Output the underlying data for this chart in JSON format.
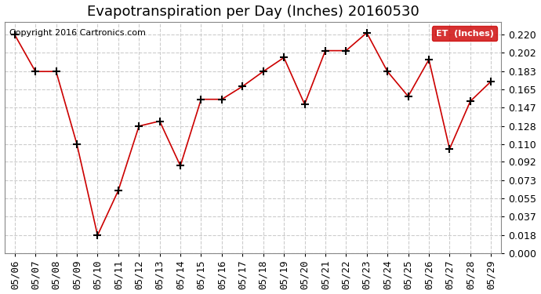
{
  "title": "Evapotranspiration per Day (Inches) 20160530",
  "copyright": "Copyright 2016 Cartronics.com",
  "legend_label": "ET  (Inches)",
  "dates": [
    "05/06",
    "05/07",
    "05/08",
    "05/09",
    "05/10",
    "05/11",
    "05/12",
    "05/13",
    "05/14",
    "05/15",
    "05/16",
    "05/17",
    "05/18",
    "05/19",
    "05/20",
    "05/21",
    "05/22",
    "05/23",
    "05/24",
    "05/25",
    "05/26",
    "05/27",
    "05/28",
    "05/29"
  ],
  "values": [
    0.22,
    0.183,
    0.183,
    0.11,
    0.018,
    0.063,
    0.128,
    0.133,
    0.088,
    0.155,
    0.155,
    0.168,
    0.183,
    0.197,
    0.15,
    0.204,
    0.204,
    0.222,
    0.183,
    0.158,
    0.195,
    0.105,
    0.153,
    0.173
  ],
  "ylim": [
    0.0,
    0.233
  ],
  "yticks": [
    0.0,
    0.018,
    0.037,
    0.055,
    0.073,
    0.092,
    0.11,
    0.128,
    0.147,
    0.165,
    0.183,
    0.202,
    0.22
  ],
  "line_color": "#cc0000",
  "marker": "+",
  "marker_color": "#000000",
  "bg_color": "#ffffff",
  "grid_color": "#cccccc",
  "legend_bg": "#cc0000",
  "legend_text_color": "#ffffff",
  "title_fontsize": 13,
  "tick_fontsize": 9,
  "copyright_fontsize": 8
}
